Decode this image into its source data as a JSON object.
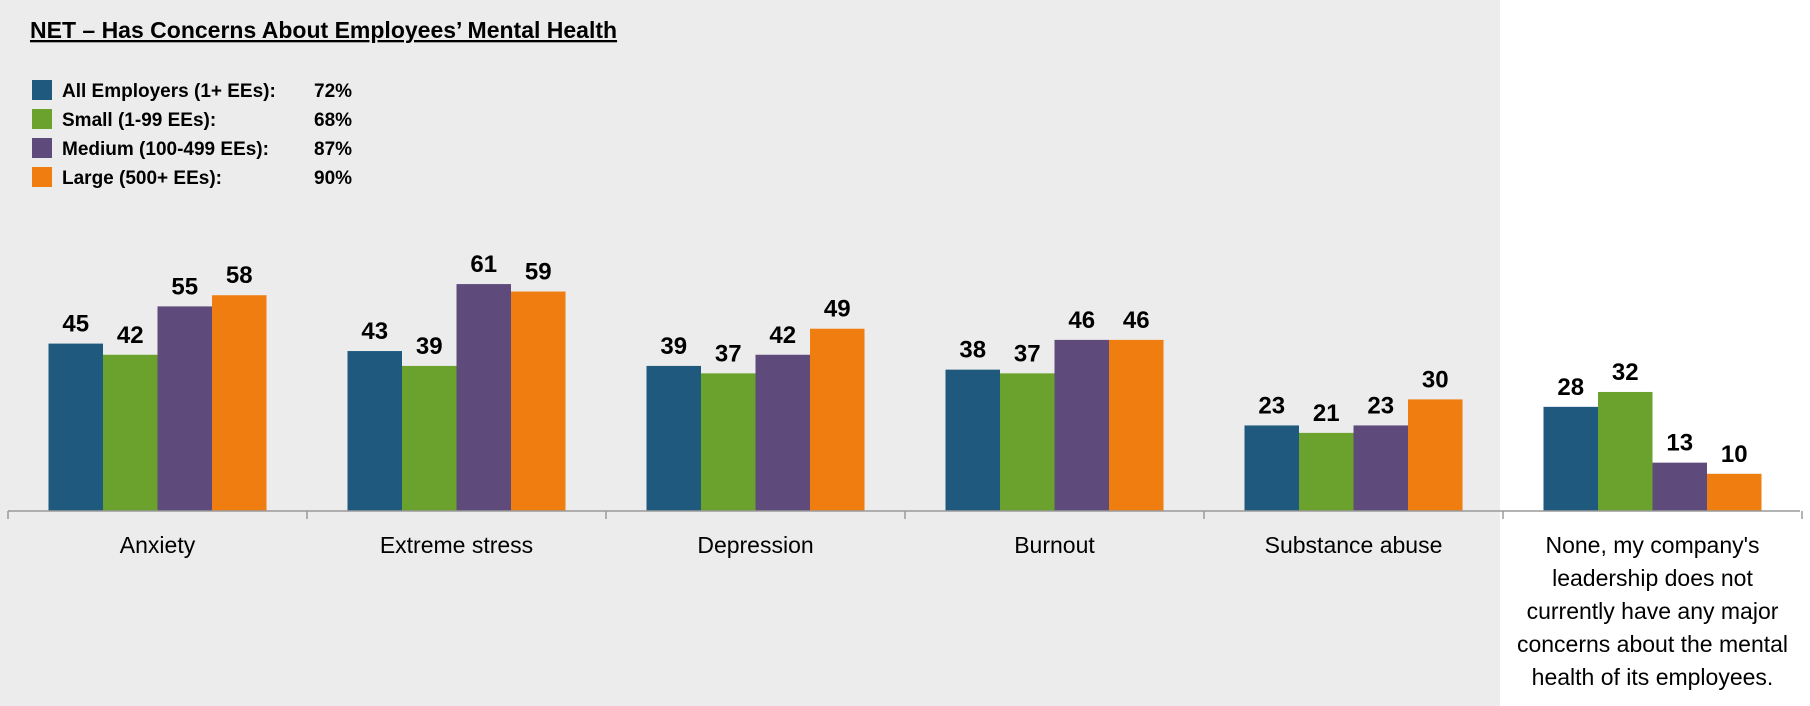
{
  "chart_data": {
    "type": "bar",
    "title": "NET – Has Concerns About Employees’ Mental Health",
    "categories": [
      "Anxiety",
      "Extreme stress",
      "Depression",
      "Burnout",
      "Substance abuse",
      "None, my company's leadership does not currently have any major concerns about the mental health of its employees."
    ],
    "category_lines": [
      [
        "Anxiety"
      ],
      [
        "Extreme stress"
      ],
      [
        "Depression"
      ],
      [
        "Burnout"
      ],
      [
        "Substance abuse"
      ],
      [
        "None, my company's",
        "leadership does not",
        "currently have any major",
        "concerns about the mental",
        "health of its employees."
      ]
    ],
    "series": [
      {
        "name": "All Employers (1+ EEs):",
        "net": "72%",
        "color": "#1f5a7e",
        "values": [
          45,
          43,
          39,
          38,
          23,
          28
        ]
      },
      {
        "name": "Small (1-99 EEs):",
        "net": "68%",
        "color": "#6ba12d",
        "values": [
          42,
          39,
          37,
          37,
          21,
          32
        ]
      },
      {
        "name": "Medium (100-499 EEs):",
        "net": "87%",
        "color": "#5e4a7b",
        "values": [
          55,
          61,
          42,
          46,
          23,
          13
        ]
      },
      {
        "name": "Large (500+ EEs):",
        "net": "90%",
        "color": "#ef7d10",
        "values": [
          58,
          59,
          49,
          46,
          30,
          10
        ]
      }
    ],
    "ylim": [
      0,
      70
    ],
    "xlabel": "",
    "ylabel": "",
    "grid": false,
    "legend_position": "top-left",
    "panel_color": "#ececec"
  }
}
